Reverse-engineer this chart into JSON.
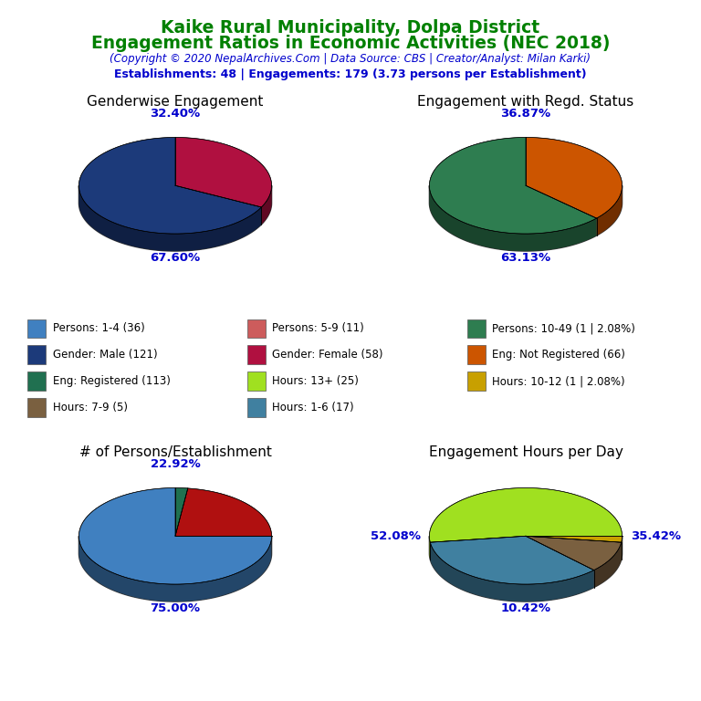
{
  "title_line1": "Kaike Rural Municipality, Dolpa District",
  "title_line2": "Engagement Ratios in Economic Activities (NEC 2018)",
  "subtitle": "(Copyright © 2020 NepalArchives.Com | Data Source: CBS | Creator/Analyst: Milan Karki)",
  "stats_line": "Establishments: 48 | Engagements: 179 (3.73 persons per Establishment)",
  "title_color": "#008000",
  "subtitle_color": "#0000CD",
  "stats_color": "#0000CD",
  "pie1_title": "Genderwise Engagement",
  "pie1_values": [
    121,
    58
  ],
  "pie1_colors": [
    "#1C3A7A",
    "#B01040"
  ],
  "pie1_startangle": 90,
  "pie1_labels": [
    "67.60%",
    "32.40%"
  ],
  "pie1_label_angles": [
    270,
    90
  ],
  "pie2_title": "Engagement with Regd. Status",
  "pie2_values": [
    113,
    66
  ],
  "pie2_colors": [
    "#2E7D50",
    "#CC5500"
  ],
  "pie2_startangle": 90,
  "pie2_labels": [
    "63.13%",
    "36.87%"
  ],
  "pie2_label_angles": [
    270,
    90
  ],
  "pie3_title": "# of Persons/Establishment",
  "pie3_values": [
    36,
    11,
    1
  ],
  "pie3_colors": [
    "#4080C0",
    "#B01010",
    "#207050"
  ],
  "pie3_startangle": 90,
  "pie3_labels": [
    "75.00%",
    "22.92%",
    ""
  ],
  "pie3_label_angles": [
    270,
    90,
    0
  ],
  "pie4_title": "Engagement Hours per Day",
  "pie4_values": [
    25,
    17,
    5,
    1
  ],
  "pie4_colors": [
    "#A0E020",
    "#4080A0",
    "#7A6040",
    "#C8A000"
  ],
  "pie4_startangle": 0,
  "pie4_labels": [
    "52.08%",
    "35.42%",
    "10.42%",
    ""
  ],
  "pie4_label_angles": [
    180,
    0,
    270,
    0
  ],
  "legend_items": [
    {
      "label": "Persons: 1-4 (36)",
      "color": "#4080C0"
    },
    {
      "label": "Persons: 5-9 (11)",
      "color": "#CD5C5C"
    },
    {
      "label": "Persons: 10-49 (1 | 2.08%)",
      "color": "#2E7D50"
    },
    {
      "label": "Gender: Male (121)",
      "color": "#1C3A7A"
    },
    {
      "label": "Gender: Female (58)",
      "color": "#B01040"
    },
    {
      "label": "Eng: Not Registered (66)",
      "color": "#CC5500"
    },
    {
      "label": "Eng: Registered (113)",
      "color": "#207050"
    },
    {
      "label": "Hours: 13+ (25)",
      "color": "#A0E020"
    },
    {
      "label": "Hours: 10-12 (1 | 2.08%)",
      "color": "#C8A000"
    },
    {
      "label": "Hours: 7-9 (5)",
      "color": "#7A6040"
    },
    {
      "label": "Hours: 1-6 (17)",
      "color": "#4080A0"
    }
  ]
}
